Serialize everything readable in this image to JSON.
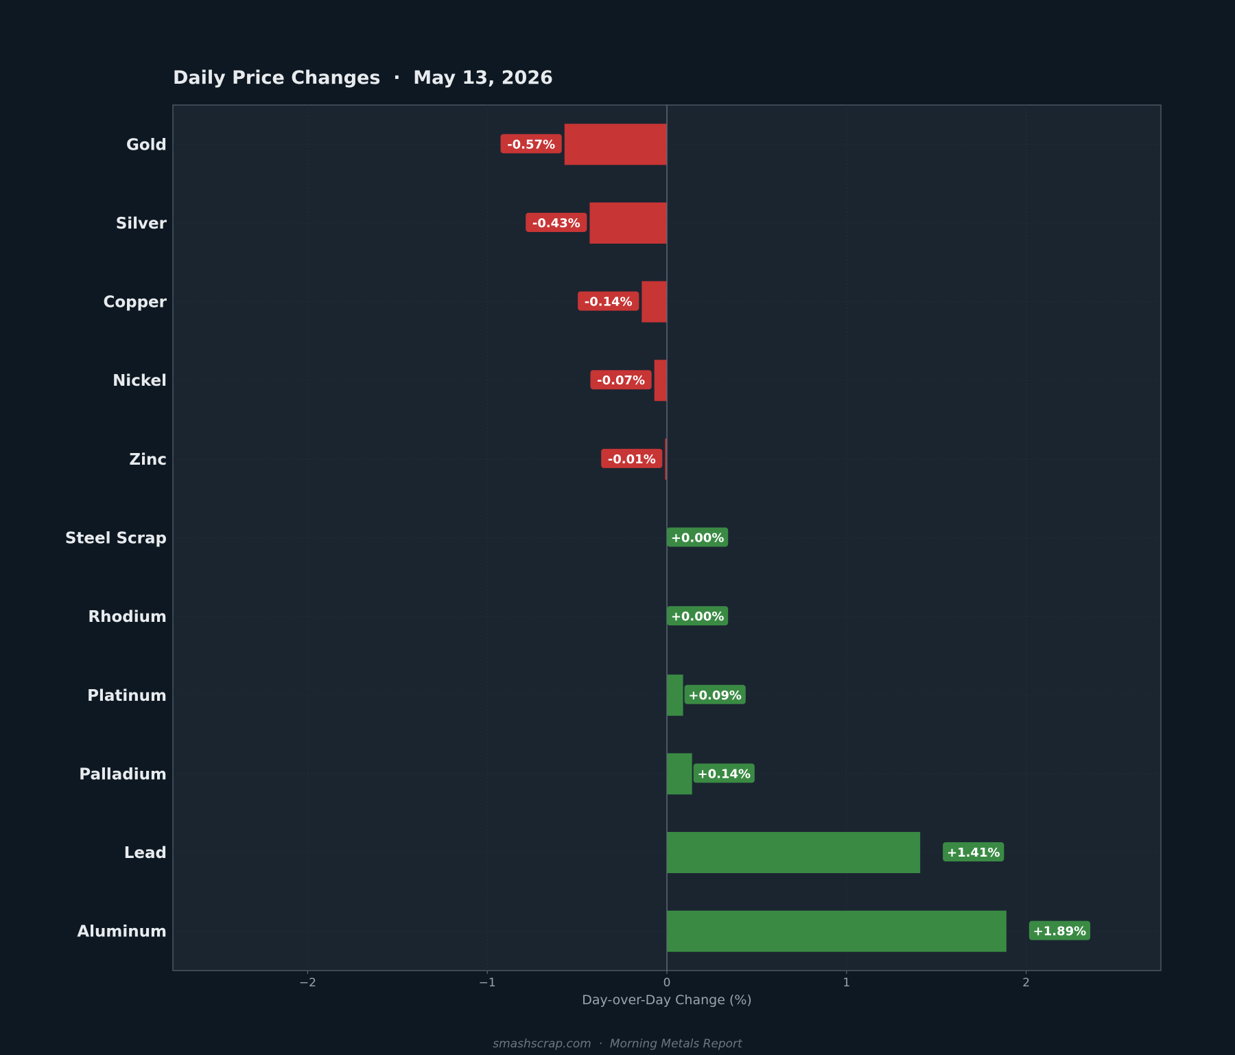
{
  "chart_data": {
    "type": "bar",
    "orientation": "horizontal",
    "title": "Daily Price Changes  ·  May 13, 2026",
    "xlabel": "Day-over-Day Change (%)",
    "ylabel": "",
    "xlim": [
      -2.75,
      2.75
    ],
    "xticks": [
      -2,
      -1,
      0,
      1,
      2
    ],
    "xtick_labels": [
      "−2",
      "−1",
      "0",
      "1",
      "2"
    ],
    "categories": [
      "Gold",
      "Silver",
      "Copper",
      "Nickel",
      "Zinc",
      "Steel Scrap",
      "Rhodium",
      "Platinum",
      "Palladium",
      "Lead",
      "Aluminum"
    ],
    "values": [
      -0.57,
      -0.43,
      -0.14,
      -0.07,
      -0.01,
      0.0,
      0.0,
      0.09,
      0.14,
      1.41,
      1.89
    ],
    "value_labels": [
      "-0.57%",
      "-0.43%",
      "-0.14%",
      "-0.07%",
      "-0.01%",
      "+0.00%",
      "+0.00%",
      "+0.09%",
      "+0.14%",
      "+1.41%",
      "+1.89%"
    ],
    "colors": {
      "negative": "#c73535",
      "positive": "#3a8a44",
      "plot_bg": "#1b2530",
      "page_bg": "#0e1822",
      "axis": "#4a5663"
    },
    "grid": true,
    "legend": "none"
  },
  "footer": "smashscrap.com  ·  Morning Metals Report"
}
